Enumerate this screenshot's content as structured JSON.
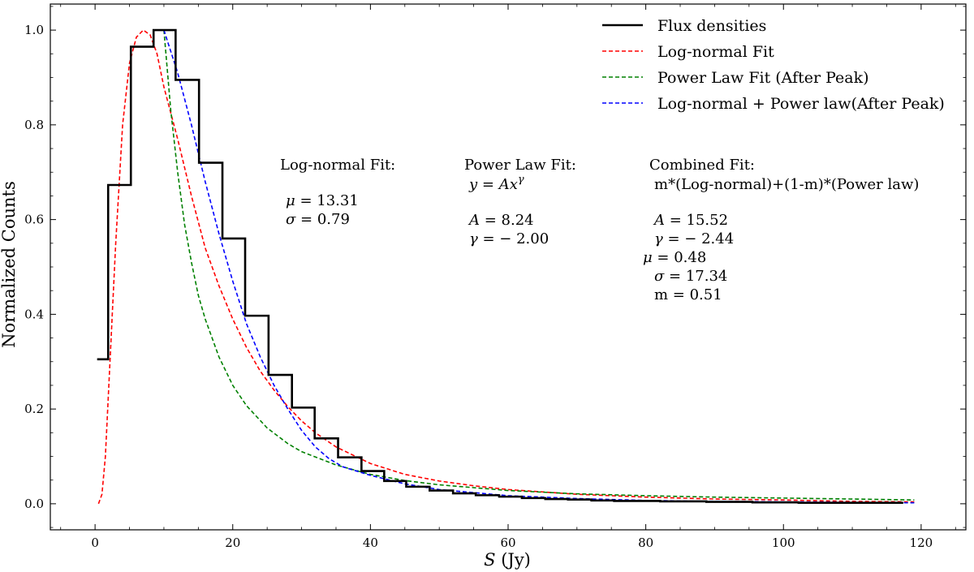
{
  "chart_data": {
    "type": "line",
    "title": "",
    "xlabel_symbol": "S",
    "xlabel_unit": "(Jy)",
    "ylabel": "Normalized Counts",
    "xlim": [
      -6.5,
      126.5
    ],
    "ylim": [
      -0.055,
      1.055
    ],
    "xticks": [
      0,
      20,
      40,
      60,
      80,
      100,
      120
    ],
    "xtick_labels": [
      "0",
      "20",
      "40",
      "60",
      "80",
      "100",
      "120"
    ],
    "yticks": [
      0.0,
      0.2,
      0.4,
      0.6,
      0.8,
      1.0
    ],
    "ytick_labels": [
      "0.0",
      "0.2",
      "0.4",
      "0.6",
      "0.8",
      "1.0"
    ],
    "grid": false,
    "legend_position": "top-right",
    "series": [
      {
        "name": "Flux densities",
        "style": "step-solid",
        "color": "#000000",
        "bin_edges": [
          0.3,
          1.9,
          5.2,
          8.5,
          11.7,
          15.1,
          18.5,
          21.8,
          25.2,
          28.6,
          31.9,
          35.3,
          38.7,
          42.0,
          45.2,
          48.6,
          52.0,
          55.3,
          58.7,
          62.0,
          65.4,
          68.7,
          72.1,
          75.4,
          78.8,
          82.1,
          85.5,
          88.8,
          92.2,
          95.5,
          98.9,
          102.2,
          105.6,
          108.9,
          112.3,
          115.6,
          117.4
        ],
        "values": [
          0.305,
          0.673,
          0.965,
          1.0,
          0.895,
          0.72,
          0.56,
          0.397,
          0.272,
          0.203,
          0.138,
          0.098,
          0.069,
          0.048,
          0.036,
          0.028,
          0.022,
          0.018,
          0.015,
          0.012,
          0.01,
          0.009,
          0.007,
          0.006,
          0.006,
          0.005,
          0.005,
          0.004,
          0.004,
          0.003,
          0.003,
          0.002,
          0.002,
          0.002,
          0.002,
          0.002
        ]
      },
      {
        "name": "Log-normal Fit",
        "style": "dashed",
        "color": "#ff0000",
        "x": [
          0.5,
          1.0,
          1.5,
          2.0,
          3.0,
          4.0,
          5.0,
          6.0,
          7.0,
          8.0,
          9.0,
          10.0,
          12.0,
          14.0,
          16.0,
          18.0,
          20.0,
          22.0,
          24.0,
          26.0,
          28.0,
          30.0,
          32.0,
          35.0,
          40.0,
          45.0,
          50.0,
          55.0,
          60.0,
          70.0,
          80.0,
          90.0,
          100.0,
          110.0,
          119.0
        ],
        "y": [
          0.0,
          0.02,
          0.1,
          0.25,
          0.55,
          0.8,
          0.93,
          0.985,
          1.0,
          0.99,
          0.95,
          0.88,
          0.77,
          0.65,
          0.54,
          0.46,
          0.39,
          0.33,
          0.28,
          0.24,
          0.205,
          0.175,
          0.15,
          0.12,
          0.085,
          0.062,
          0.048,
          0.038,
          0.03,
          0.02,
          0.014,
          0.01,
          0.008,
          0.005,
          0.004
        ]
      },
      {
        "name": "Power Law Fit (After Peak)",
        "style": "dashed",
        "color": "#008000",
        "x": [
          10.0,
          11.0,
          12.0,
          13.0,
          14.0,
          15.0,
          16.0,
          18.0,
          20.0,
          22.0,
          25.0,
          28.0,
          30.0,
          35.0,
          40.0,
          45.0,
          50.0,
          60.0,
          70.0,
          80.0,
          90.0,
          100.0,
          110.0,
          119.0
        ],
        "y": [
          1.0,
          0.83,
          0.7,
          0.59,
          0.51,
          0.44,
          0.39,
          0.31,
          0.25,
          0.207,
          0.16,
          0.127,
          0.11,
          0.082,
          0.062,
          0.049,
          0.04,
          0.028,
          0.021,
          0.017,
          0.014,
          0.012,
          0.01,
          0.008
        ]
      },
      {
        "name": "Log-normal + Power law(After Peak)",
        "style": "dashed",
        "color": "#0000ff",
        "x": [
          10.0,
          12.0,
          14.0,
          16.0,
          18.0,
          20.0,
          22.0,
          24.0,
          26.0,
          28.0,
          30.0,
          32.0,
          34.0,
          36.0,
          40.0,
          45.0,
          50.0,
          60.0,
          70.0,
          80.0,
          90.0,
          100.0,
          110.0,
          119.0
        ],
        "y": [
          1.0,
          0.91,
          0.8,
          0.68,
          0.57,
          0.47,
          0.38,
          0.31,
          0.25,
          0.2,
          0.155,
          0.12,
          0.095,
          0.078,
          0.06,
          0.042,
          0.03,
          0.017,
          0.011,
          0.007,
          0.005,
          0.004,
          0.003,
          0.002
        ]
      }
    ],
    "annotations": {
      "lognormal": {
        "title": "Log-normal Fit:",
        "mu_symbol": "μ",
        "mu_value": "= 13.31",
        "sigma_symbol": "σ",
        "sigma_value": "= 0.79"
      },
      "powerlaw": {
        "title": "Power Law Fit:",
        "formula_lhs": "y",
        "formula_eq": " = ",
        "formula_rhs": "Ax",
        "formula_exp": "γ",
        "A_symbol": "A",
        "A_value": " = 8.24",
        "gamma_symbol": "γ",
        "gamma_value": " = − 2.00"
      },
      "combined": {
        "title": "Combined Fit:",
        "formula": "m*(Log-normal)+(1-m)*(Power law)",
        "A_symbol": "A",
        "A_value": " = 15.52",
        "gamma_symbol": "γ",
        "gamma_value": " = − 2.44",
        "mu_symbol": "μ",
        "mu_value": " = 0.48",
        "sigma_symbol": "σ",
        "sigma_value": " = 17.34",
        "m_text": "m = 0.51"
      }
    }
  }
}
